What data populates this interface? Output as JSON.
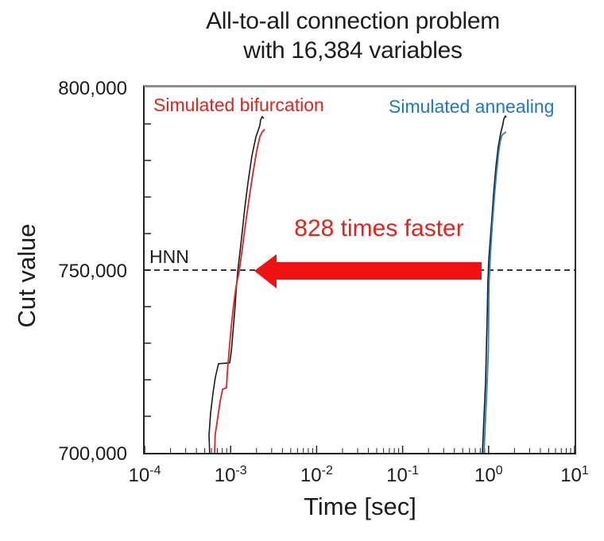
{
  "title": {
    "line1": "All-to-all connection problem",
    "line2": "with 16,384 variables"
  },
  "labels": {
    "bifurcation": "Simulated bifurcation",
    "annealing": "Simulated annealing",
    "hnn": "HNN",
    "speedup": "828 times faster"
  },
  "colors": {
    "red_text": "#e3231b",
    "blue_text": "#1f78be",
    "arrow_red": "#f01111",
    "curve_black": "#1a1a1a",
    "curve_red": "#e0241c",
    "curve_blue": "#2d7fc0",
    "dash_black": "#1c1c1c"
  },
  "chart_data": {
    "type": "line",
    "title": "All-to-all connection problem with 16,384 variables",
    "xlabel": "Time [sec]",
    "ylabel": "Cut value",
    "x_scale": "log",
    "x_range": [
      0.0001,
      10
    ],
    "y_range": [
      700000,
      800000
    ],
    "x_tick_exponents": [
      -4,
      -3,
      -2,
      -1,
      0,
      1
    ],
    "x_tick_labels": [
      "10^-4",
      "10^-3",
      "10^-2",
      "10^-1",
      "10^0",
      "10^1"
    ],
    "y_tick_values": [
      800000,
      750000,
      700000
    ],
    "y_tick_labels": [
      "800,000",
      "750,000",
      "700,000"
    ],
    "grid": false,
    "legend_position": "inside-top",
    "annotations": {
      "hnn": {
        "label": "HNN",
        "value": 750000,
        "style": "dashed-horizontal"
      },
      "speedup": {
        "text": "828 times faster",
        "factor": 828,
        "arrow_from_sec": 0.8,
        "arrow_to_sec": 0.0013,
        "at_value": 750000
      }
    },
    "series": [
      {
        "name": "Simulated bifurcation (black run)",
        "color": "#1a1a1a",
        "points": [
          [
            0.00057,
            700000
          ],
          [
            0.00056,
            704800
          ],
          [
            0.000585,
            710900
          ],
          [
            0.000624,
            716300
          ],
          [
            0.000664,
            720700
          ],
          [
            0.000708,
            723500
          ],
          [
            0.000723,
            724400
          ],
          [
            0.000975,
            724600
          ],
          [
            0.00102,
            727800
          ],
          [
            0.00108,
            734800
          ],
          [
            0.00113,
            740200
          ],
          [
            0.00116,
            744600
          ],
          [
            0.00121,
            749800
          ],
          [
            0.00129,
            755400
          ],
          [
            0.00137,
            760900
          ],
          [
            0.00146,
            767000
          ],
          [
            0.00159,
            773900
          ],
          [
            0.00177,
            781300
          ],
          [
            0.00197,
            786500
          ],
          [
            0.00219,
            789600
          ],
          [
            0.00223,
            791100
          ],
          [
            0.00233,
            792000
          ],
          [
            0.00243,
            791500
          ]
        ]
      },
      {
        "name": "Simulated bifurcation",
        "color": "#e0241c",
        "points": [
          [
            0.00065,
            700000
          ],
          [
            0.00066,
            704800
          ],
          [
            0.00071,
            709800
          ],
          [
            0.000755,
            714100
          ],
          [
            0.00079,
            716300
          ],
          [
            0.000805,
            717400
          ],
          [
            0.000895,
            717800
          ],
          [
            0.000915,
            721800
          ],
          [
            0.000955,
            727200
          ],
          [
            0.00102,
            734800
          ],
          [
            0.00108,
            740200
          ],
          [
            0.00116,
            745700
          ],
          [
            0.00126,
            749800
          ],
          [
            0.00137,
            756100
          ],
          [
            0.00149,
            762600
          ],
          [
            0.00163,
            769200
          ],
          [
            0.00181,
            776300
          ],
          [
            0.00201,
            782600
          ],
          [
            0.00219,
            786500
          ],
          [
            0.00233,
            787800
          ],
          [
            0.00249,
            788500
          ]
        ]
      },
      {
        "name": "Simulated annealing (black run)",
        "color": "#1a1a1a",
        "points": [
          [
            0.847,
            700000
          ],
          [
            0.884,
            709800
          ],
          [
            0.922,
            719600
          ],
          [
            0.942,
            728300
          ],
          [
            0.962,
            737000
          ],
          [
            0.982,
            746800
          ],
          [
            0.993,
            749800
          ],
          [
            1.0,
            752200
          ],
          [
            1.047,
            758700
          ],
          [
            1.092,
            764100
          ],
          [
            1.14,
            770700
          ],
          [
            1.216,
            778300
          ],
          [
            1.295,
            783700
          ],
          [
            1.38,
            787400
          ],
          [
            1.471,
            790000
          ],
          [
            1.503,
            791300
          ],
          [
            1.57,
            792200
          ],
          [
            1.603,
            791800
          ]
        ]
      },
      {
        "name": "Simulated annealing",
        "color": "#2d7fc0",
        "points": [
          [
            0.884,
            700000
          ],
          [
            0.922,
            709800
          ],
          [
            0.962,
            719600
          ],
          [
            0.993,
            728300
          ],
          [
            1.002,
            737000
          ],
          [
            1.012,
            746800
          ],
          [
            1.056,
            755500
          ],
          [
            1.1,
            762000
          ],
          [
            1.163,
            769600
          ],
          [
            1.228,
            776100
          ],
          [
            1.296,
            781500
          ],
          [
            1.365,
            785200
          ],
          [
            1.436,
            787000
          ],
          [
            1.6,
            787800
          ]
        ]
      }
    ]
  }
}
